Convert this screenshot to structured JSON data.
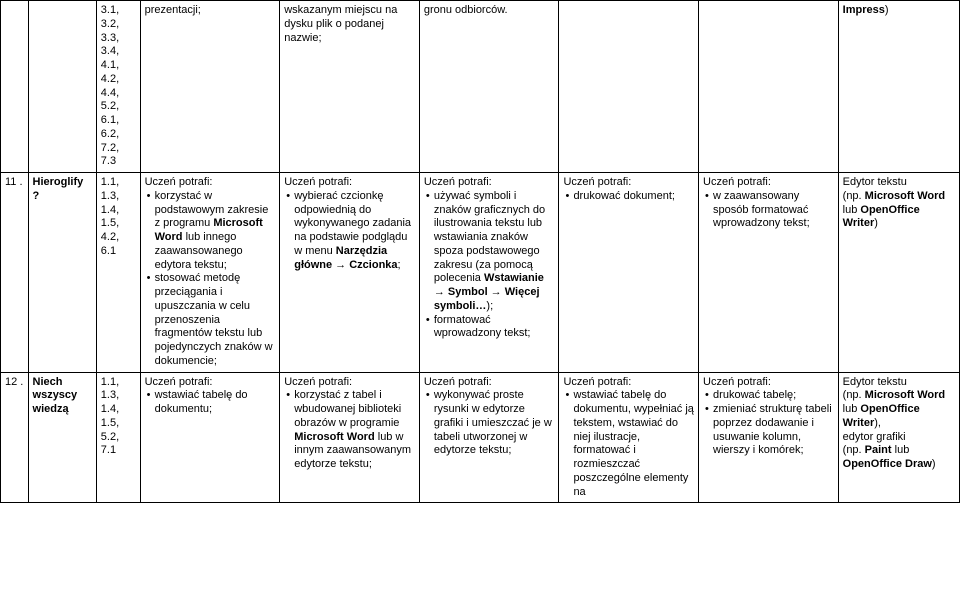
{
  "row_top": {
    "num": "",
    "topic": "",
    "codes": "3.1, 3.2, 3.3, 3.4, 4.1, 4.2, 4.4, 5.2, 6.1, 6.2, 7.2, 7.3",
    "d": "prezentacji;",
    "e": "wskazanym miejscu na dysku plik o podanej nazwie;",
    "f": "gronu odbiorców.",
    "g": "",
    "h": "",
    "i_bold": "Impress",
    "i_after": ")"
  },
  "row11": {
    "num": "11 .",
    "topic": "Hieroglify ?",
    "codes": "1.1, 1.3, 1.4, 1.5, 4.2, 6.1",
    "d_head": "Uczeń potrafi:",
    "d_b1a": "korzystać w podstawowym zakresie z programu ",
    "d_b1b_bold": "Microsoft Word",
    "d_b1c": " lub innego zaawansowanego edytora tekstu;",
    "d_b2": "stosować metodę przeciągania i upuszczania w celu przenoszenia fragmentów tekstu lub pojedynczych znaków w dokumencie;",
    "e_head": "Uczeń potrafi:",
    "e_b1a": "wybierać czcionkę odpowiednią do wykonywanego zadania na podstawie podglądu w menu ",
    "e_b1b_bold": "Narzędzia główne",
    "e_b1c": " → ",
    "e_b1d_bold": "Czcionka",
    "e_b1e": ";",
    "f_head": "Uczeń potrafi:",
    "f_b1a": "używać symboli i znaków graficznych do ilustrowania tekstu lub wstawiania znaków spoza podstawowego zakresu (za pomocą polecenia ",
    "f_b1b_bold": "Wstawianie",
    "f_b1c": " → ",
    "f_b1d_bold": "Symbol",
    "f_b1e": " → ",
    "f_b1f_bold": "Więcej symboli…",
    "f_b1g": ");",
    "f_b2": "formatować wprowadzony tekst;",
    "g_head": "Uczeń potrafi:",
    "g_b1": "drukować dokument;",
    "h_head": "Uczeń potrafi:",
    "h_b1": "w zaawansowany sposób formatować wprowadzony tekst;",
    "i_line1": "Edytor tekstu",
    "i_line2a": "(np. ",
    "i_line2b_bold": "Microsoft Word",
    "i_line3a": "lub ",
    "i_line3b_bold": "OpenOffice Writer",
    "i_line3c": ")"
  },
  "row12": {
    "num": "12 .",
    "topic": "Niech wszyscy wiedzą",
    "codes": "1.1, 1.3, 1.4, 1.5, 5.2, 7.1",
    "d_head": "Uczeń potrafi:",
    "d_b1": "wstawiać tabelę do dokumentu;",
    "e_head": "Uczeń potrafi:",
    "e_b1a": "korzystać z tabel i wbudowanej biblioteki obrazów w programie ",
    "e_b1b_bold": "Microsoft Word",
    "e_b1c": " lub w innym zaawansowanym edytorze tekstu;",
    "f_head": "Uczeń potrafi:",
    "f_b1": "wykonywać proste rysunki w edytorze grafiki i umieszczać je w tabeli utworzonej w edytorze tekstu;",
    "g_head": "Uczeń potrafi:",
    "g_b1": "wstawiać tabelę do dokumentu, wypełniać ją tekstem, wstawiać do niej ilustracje, formatować i rozmieszczać poszczególne elementy na",
    "h_head": "Uczeń potrafi:",
    "h_b1": "drukować tabelę;",
    "h_b2": "zmieniać strukturę tabeli poprzez dodawanie i usuwanie kolumn, wierszy i komórek;",
    "i_line1": "Edytor tekstu",
    "i_line2a": "(np. ",
    "i_line2b_bold": "Microsoft Word",
    "i_line3a": "lub ",
    "i_line3b_bold": "OpenOffice Writer",
    "i_line3c": "),",
    "i_line4": "edytor grafiki",
    "i_line5a": "(np. ",
    "i_line5b_bold": "Paint",
    "i_line5c": " lub ",
    "i_line6_bold": "OpenOffice Draw",
    "i_line6b": ")"
  }
}
